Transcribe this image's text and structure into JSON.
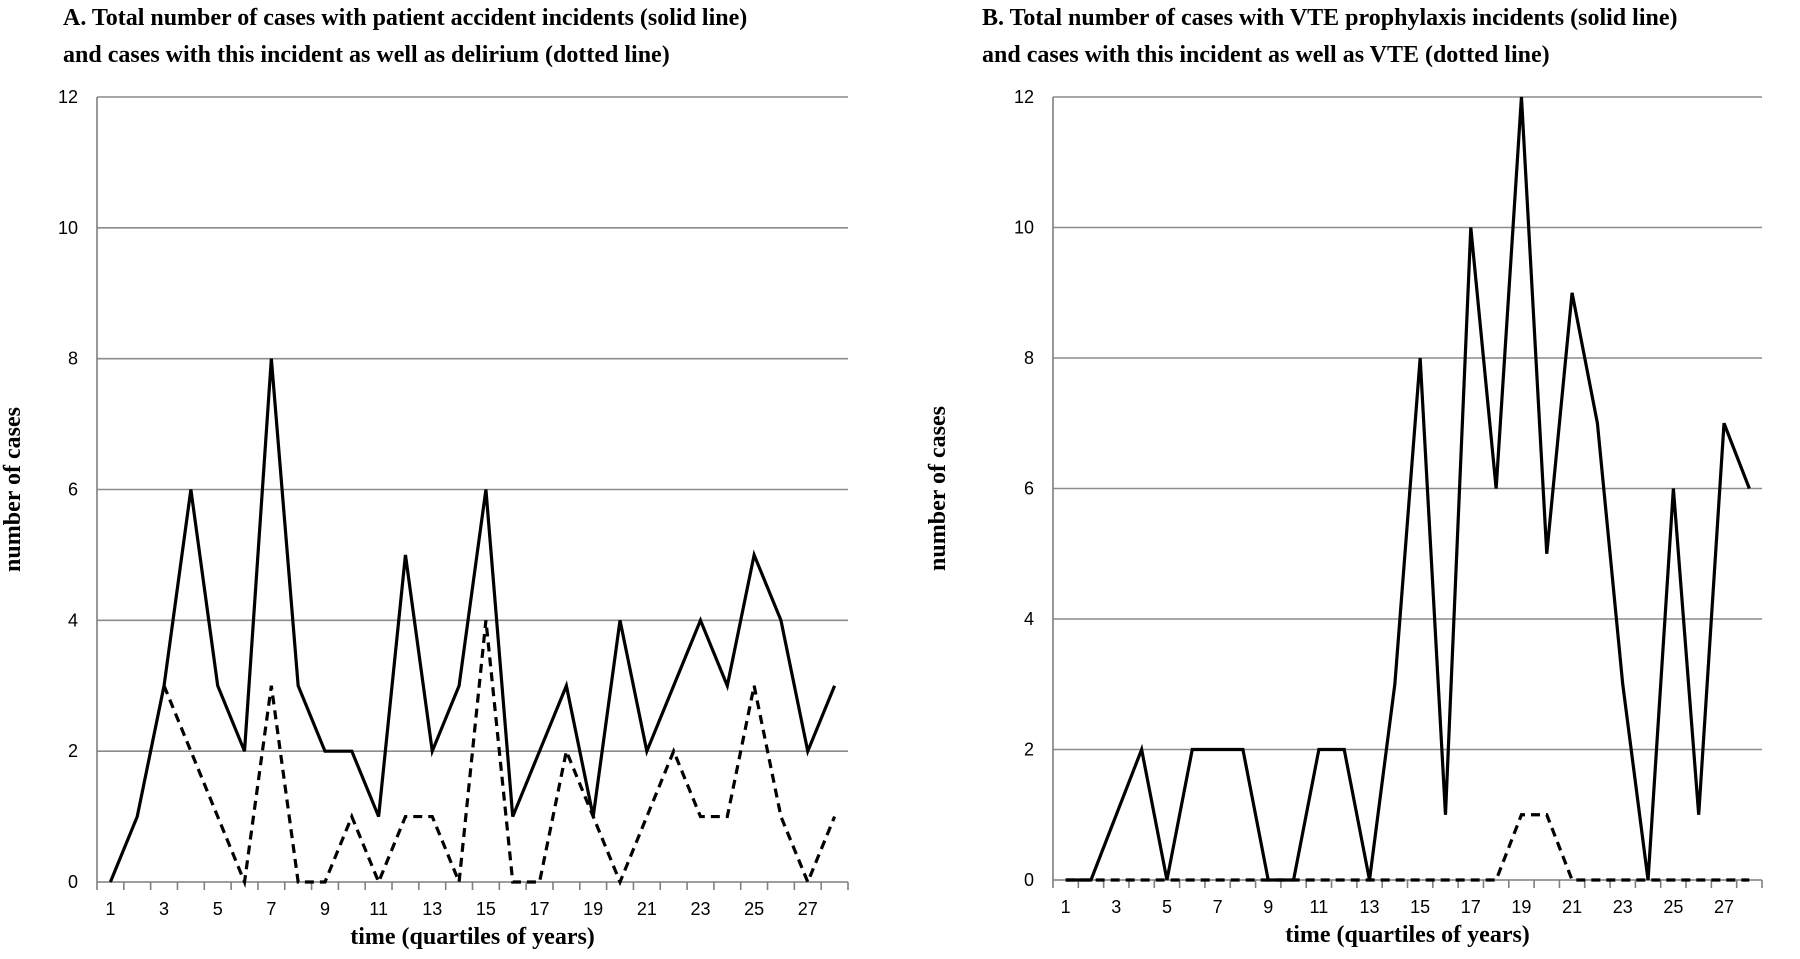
{
  "chart_data": [
    {
      "type": "line",
      "title_line1": "A. Total number of cases with patient accident incidents (solid line)",
      "title_line2": "and cases with this incident as well as delirium (dotted line)",
      "xlabel": "time (quartiles of years)",
      "ylabel": "number of cases",
      "ylim": [
        0,
        12
      ],
      "yticks": [
        0,
        2,
        4,
        6,
        8,
        10,
        12
      ],
      "xticks": [
        1,
        3,
        5,
        7,
        9,
        11,
        13,
        15,
        17,
        19,
        21,
        23,
        25,
        27
      ],
      "x": [
        1,
        2,
        3,
        4,
        5,
        6,
        7,
        8,
        9,
        10,
        11,
        12,
        13,
        14,
        15,
        16,
        17,
        18,
        19,
        20,
        21,
        22,
        23,
        24,
        25,
        26,
        27,
        28
      ],
      "grid": true,
      "series": [
        {
          "style": "solid",
          "values": [
            0,
            1,
            3,
            6,
            3,
            2,
            8,
            3,
            2,
            2,
            1,
            5,
            2,
            3,
            6,
            1,
            2,
            3,
            1,
            4,
            2,
            3,
            4,
            3,
            5,
            4,
            2,
            3
          ]
        },
        {
          "style": "dashed",
          "values": [
            null,
            null,
            3,
            2,
            1,
            0,
            3,
            0,
            0,
            1,
            0,
            1,
            1,
            0,
            4,
            0,
            0,
            2,
            1,
            0,
            1,
            2,
            1,
            1,
            3,
            1,
            0,
            1
          ]
        }
      ]
    },
    {
      "type": "line",
      "title_line1": "B. Total number of cases with VTE prophylaxis incidents (solid line)",
      "title_line2": "and cases with this incident as well as VTE (dotted line)",
      "xlabel": "time (quartiles of years)",
      "ylabel": "number of cases",
      "ylim": [
        0,
        12
      ],
      "yticks": [
        0,
        2,
        4,
        6,
        8,
        10,
        12
      ],
      "xticks": [
        1,
        3,
        5,
        7,
        9,
        11,
        13,
        15,
        17,
        19,
        21,
        23,
        25,
        27
      ],
      "x": [
        1,
        2,
        3,
        4,
        5,
        6,
        7,
        8,
        9,
        10,
        11,
        12,
        13,
        14,
        15,
        16,
        17,
        18,
        19,
        20,
        21,
        22,
        23,
        24,
        25,
        26,
        27,
        28
      ],
      "grid": true,
      "series": [
        {
          "style": "solid",
          "values": [
            0,
            0,
            1,
            2,
            0,
            2,
            2,
            2,
            0,
            0,
            2,
            2,
            0,
            3,
            8,
            1,
            10,
            6,
            12,
            5,
            9,
            7,
            3,
            0,
            6,
            1,
            7,
            6
          ]
        },
        {
          "style": "dashed",
          "values": [
            0,
            0,
            0,
            0,
            0,
            0,
            0,
            0,
            0,
            0,
            0,
            0,
            0,
            0,
            0,
            0,
            0,
            0,
            1,
            1,
            0,
            0,
            0,
            0,
            0,
            0,
            0,
            0
          ]
        }
      ]
    }
  ]
}
